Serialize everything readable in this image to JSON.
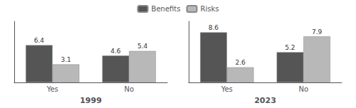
{
  "chart_data": [
    {
      "type": "bar",
      "xlabel": "1999",
      "categories": [
        "Yes",
        "No"
      ],
      "series": [
        {
          "name": "Benefits",
          "color": "#555555",
          "values": [
            6.4,
            4.6
          ]
        },
        {
          "name": "Risks",
          "color": "#b8b8b8",
          "values": [
            3.1,
            5.4
          ]
        }
      ],
      "ylim": [
        0,
        10.5
      ],
      "grid": false,
      "tick_labels": "x",
      "data_labels": true,
      "legend": "top"
    },
    {
      "type": "bar",
      "xlabel": "2023",
      "categories": [
        "Yes",
        "No"
      ],
      "series": [
        {
          "name": "Benefits",
          "color": "#555555",
          "values": [
            8.6,
            5.2
          ]
        },
        {
          "name": "Risks",
          "color": "#b8b8b8",
          "values": [
            2.6,
            7.9
          ]
        }
      ],
      "ylim": [
        0,
        10.5
      ],
      "grid": false,
      "tick_labels": "x",
      "data_labels": true,
      "legend": "top"
    }
  ]
}
